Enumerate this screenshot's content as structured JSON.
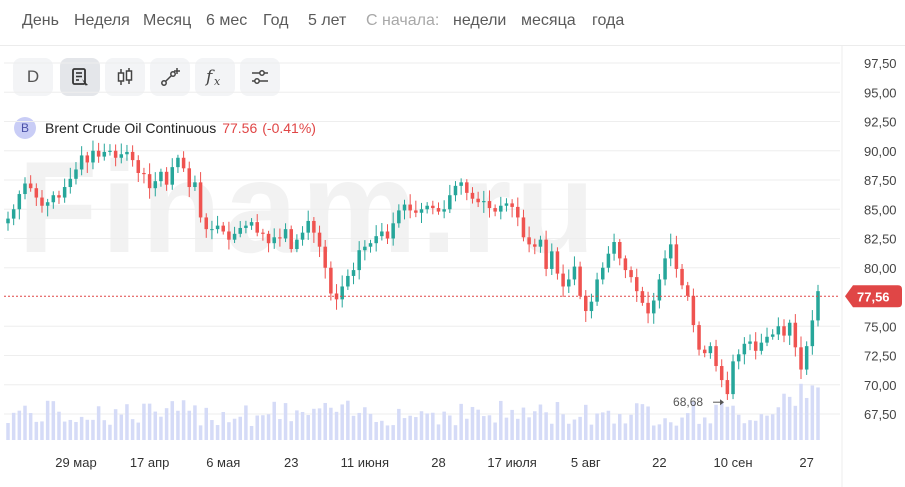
{
  "periods": {
    "items": [
      {
        "label": "День"
      },
      {
        "label": "Неделя"
      },
      {
        "label": "Месяц"
      },
      {
        "label": "6 мес"
      },
      {
        "label": "Год"
      },
      {
        "label": "5 лет"
      }
    ],
    "since_label": "С начала:",
    "since_items": [
      {
        "label": "недели"
      },
      {
        "label": "месяца"
      },
      {
        "label": "года"
      }
    ]
  },
  "toolbar": {
    "interval_label": "D",
    "tools": [
      "list-edit-icon",
      "candlestick-icon",
      "draw-line-icon",
      "function-icon",
      "settings-sliders-icon"
    ]
  },
  "legend": {
    "avatar_letter": "B",
    "name": "Brent Crude Oil Continuous",
    "price": "77.56",
    "change": "(-0.41%)"
  },
  "watermark": "Finam.ru",
  "colors": {
    "up": "#26a69a",
    "down": "#ef5350",
    "volume": "#d5dbf7",
    "price_line": "#e04646",
    "grid": "#eeeeee"
  },
  "chart_data": {
    "type": "candlestick",
    "series_name": "Brent Crude Oil Continuous",
    "y_ticks": [
      "97,50",
      "95,00",
      "92,50",
      "90,00",
      "87,50",
      "85,00",
      "82,50",
      "80,00",
      "75,00",
      "72,50",
      "70,00",
      "67,50"
    ],
    "ylim": [
      65.5,
      98.5
    ],
    "x_tick_labels": [
      {
        "label": "29 мар",
        "index": 12
      },
      {
        "label": "17 апр",
        "index": 25
      },
      {
        "label": "6 мая",
        "index": 38
      },
      {
        "label": "23",
        "index": 50
      },
      {
        "label": "11 июня",
        "index": 63
      },
      {
        "label": "28",
        "index": 76
      },
      {
        "label": "17 июля",
        "index": 89
      },
      {
        "label": "5 авг",
        "index": 102
      },
      {
        "label": "22",
        "index": 115
      },
      {
        "label": "10 сен",
        "index": 128
      },
      {
        "label": "27",
        "index": 141
      }
    ],
    "current_price": 77.56,
    "current_price_label": "77,56",
    "min_annotation": {
      "label": "68,68",
      "value": 68.68,
      "index": 128
    },
    "close": [
      84.2,
      85.0,
      86.3,
      87.2,
      86.8,
      86.0,
      85.3,
      85.6,
      86.2,
      86.0,
      86.9,
      87.6,
      88.4,
      89.6,
      89.0,
      90.0,
      89.5,
      89.9,
      90.0,
      89.4,
      89.7,
      89.9,
      89.2,
      88.1,
      88.0,
      86.8,
      87.4,
      88.2,
      87.1,
      88.6,
      89.4,
      88.5,
      86.9,
      87.3,
      84.3,
      83.3,
      83.3,
      83.6,
      83.1,
      82.4,
      82.9,
      83.4,
      83.6,
      83.9,
      83.0,
      82.9,
      82.1,
      82.6,
      82.5,
      83.3,
      81.6,
      82.4,
      83.0,
      84.0,
      83.0,
      81.8,
      80.0,
      77.8,
      77.3,
      78.4,
      79.3,
      79.8,
      81.5,
      81.8,
      82.1,
      82.7,
      83.1,
      82.5,
      83.8,
      84.9,
      85.4,
      84.9,
      84.7,
      85.0,
      85.3,
      85.1,
      84.8,
      85.0,
      86.2,
      87.0,
      87.3,
      86.4,
      85.9,
      85.6,
      85.7,
      85.1,
      84.8,
      85.3,
      85.5,
      85.2,
      84.3,
      82.6,
      82.0,
      81.8,
      82.4,
      79.9,
      81.4,
      79.5,
      78.4,
      79.0,
      80.1,
      77.6,
      76.3,
      77.1,
      79.0,
      80.0,
      81.2,
      82.2,
      80.8,
      79.8,
      79.2,
      78.0,
      77.0,
      76.1,
      77.2,
      79.0,
      80.8,
      82.0,
      79.9,
      78.5,
      77.6,
      75.1,
      73.0,
      72.7,
      73.3,
      71.6,
      70.4,
      69.2,
      72.0,
      72.6,
      73.5,
      73.7,
      72.9,
      73.6,
      74.1,
      74.3,
      75.0,
      74.2,
      75.3,
      73.2,
      71.3,
      73.3,
      75.5,
      78.0
    ],
    "volume_note": "volume bars shown beneath candles, no scale printed"
  }
}
